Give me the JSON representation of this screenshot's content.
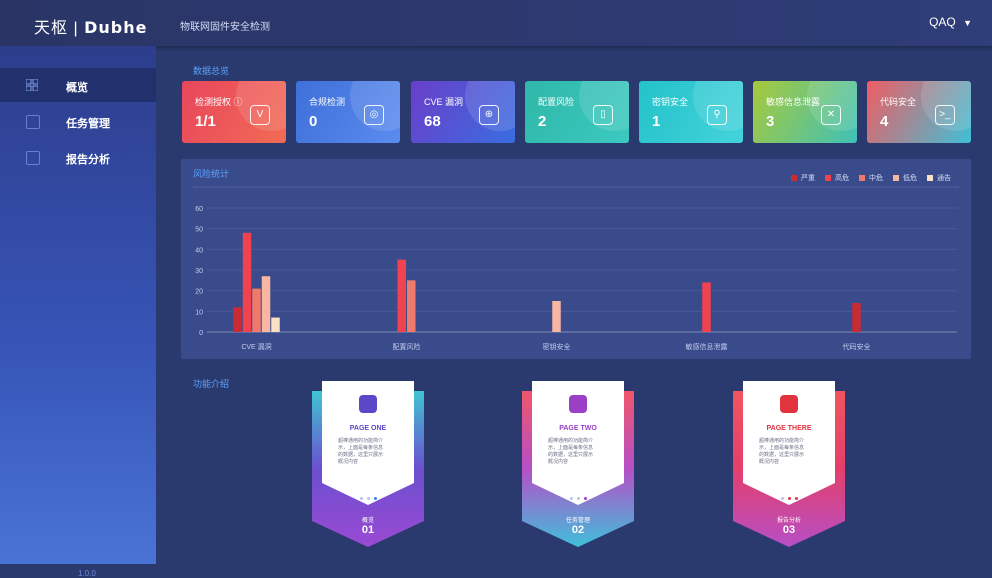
{
  "header": {
    "brand_left": "天枢 | ",
    "brand_right": "Dubhe",
    "subtitle": "物联网固件安全检测",
    "user": "QAQ",
    "user_caret": "▼"
  },
  "sidebar": {
    "items": [
      {
        "label": "概览",
        "icon": "grid-icon",
        "active": true
      },
      {
        "label": "任务管理",
        "icon": "clipboard-icon",
        "active": false
      },
      {
        "label": "报告分析",
        "icon": "report-icon",
        "active": false
      }
    ],
    "version": "1.0.0"
  },
  "overview": {
    "section_title": "数据总览",
    "cards": [
      {
        "title": "检测授权 ⓘ",
        "value": "1/1",
        "icon": "shield-v-icon",
        "glyph": "V",
        "gradient": [
          "#e8465c",
          "#f26b55"
        ]
      },
      {
        "title": "合规检测",
        "value": "0",
        "icon": "shield-search-icon",
        "glyph": "◎",
        "gradient": [
          "#3f6fd8",
          "#5a8cf0"
        ]
      },
      {
        "title": "CVE 漏洞",
        "value": "68",
        "icon": "bug-target-icon",
        "glyph": "⊕",
        "gradient": [
          "#6a3fc9",
          "#3a6de0"
        ]
      },
      {
        "title": "配置风险",
        "value": "2",
        "icon": "battery-alert-icon",
        "glyph": "▯",
        "gradient": [
          "#2fb8a8",
          "#3cc9c1"
        ]
      },
      {
        "title": "密钥安全",
        "value": "1",
        "icon": "key-search-icon",
        "glyph": "⚲",
        "gradient": [
          "#24c2c9",
          "#44d3dc"
        ]
      },
      {
        "title": "敏感信息泄露",
        "value": "3",
        "icon": "shield-x-icon",
        "glyph": "✕",
        "gradient": [
          "#a8c93a",
          "#3fc1b8"
        ]
      },
      {
        "title": "代码安全",
        "value": "4",
        "icon": "terminal-icon",
        "glyph": ">_",
        "gradient": [
          "#ef5d63",
          "#3fc0d6"
        ]
      }
    ]
  },
  "risk": {
    "section_title": "风险统计",
    "legend": [
      {
        "name": "严重",
        "color": "#c92b35"
      },
      {
        "name": "高危",
        "color": "#f0434f"
      },
      {
        "name": "中危",
        "color": "#ef7a6c"
      },
      {
        "name": "低危",
        "color": "#f7b7a3"
      },
      {
        "name": "通告",
        "color": "#f9e0c6"
      }
    ]
  },
  "chart_data": {
    "type": "bar",
    "categories": [
      "CVE 漏洞",
      "配置风险",
      "密钥安全",
      "敏感信息泄露",
      "代码安全"
    ],
    "ylim": [
      0,
      60
    ],
    "yticks": [
      0,
      10,
      20,
      30,
      40,
      50,
      60
    ],
    "grid": true,
    "legend_placement": "top-right",
    "series": [
      {
        "name": "严重",
        "values": [
          12,
          0,
          0,
          0,
          14
        ]
      },
      {
        "name": "高危",
        "values": [
          48,
          35,
          0,
          24,
          0
        ]
      },
      {
        "name": "中危",
        "values": [
          21,
          25,
          0,
          0,
          0
        ]
      },
      {
        "name": "低危",
        "values": [
          27,
          0,
          15,
          0,
          0
        ]
      },
      {
        "name": "通告",
        "values": [
          7,
          0,
          0,
          0,
          0
        ]
      }
    ]
  },
  "features": {
    "section_title": "功能介绍",
    "cards": [
      {
        "page": "PAGE ONE",
        "desc": "超棒通用的功能简介\n示，上面是每条信息\n的数据，这里只展示\n概况内容",
        "footer_label": "概览",
        "footer_num": "01",
        "icon": "cube-icon",
        "accent": "#5a48c8",
        "gradient": [
          "#3fc5d3",
          "#6b4fd0",
          "#9a4ad2"
        ],
        "dots": [
          "#b8c3ea",
          "#b8c3ea",
          "#3f7ef3"
        ]
      },
      {
        "page": "PAGE TWO",
        "desc": "超棒通用的功能简介\n示，上面是每条信息\n的数据，这里只展示\n概况内容",
        "footer_label": "任务管理",
        "footer_num": "02",
        "icon": "clipboard-check-icon",
        "accent": "#9a3fc6",
        "gradient": [
          "#f0566a",
          "#b64fc7",
          "#3fc0da"
        ],
        "dots": [
          "#b8c3ea",
          "#b8c3ea",
          "#9a3fc6"
        ]
      },
      {
        "page": "PAGE THERE",
        "desc": "超棒通用的功能简介\n示，上面是每条信息\n的数据，这里只展示\n概况内容",
        "footer_label": "报告分析",
        "footer_num": "03",
        "icon": "heartbeat-icon",
        "accent": "#e1343f",
        "gradient": [
          "#f05560",
          "#e43f6b",
          "#b64fc7"
        ],
        "dots": [
          "#b8c3ea",
          "#e1343f",
          "#e1343f"
        ]
      }
    ]
  }
}
